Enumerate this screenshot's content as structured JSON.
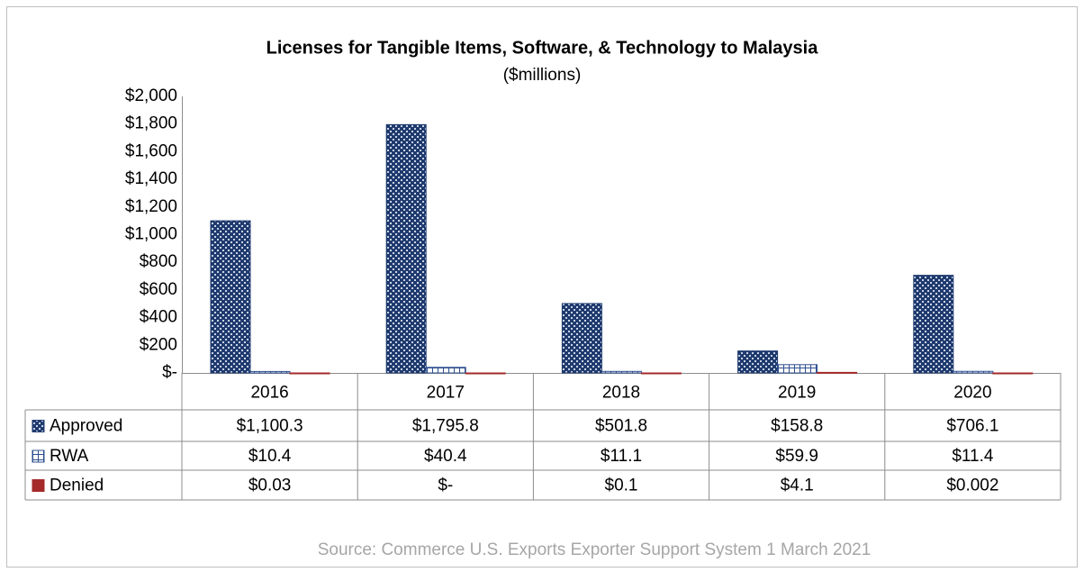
{
  "chart_data": {
    "type": "bar",
    "title": "Licenses for Tangible Items, Software, & Technology to Malaysia",
    "subtitle": "($millions)",
    "source": "Source: Commerce U.S. Exports Exporter Support System 1 March 2021",
    "categories": [
      "2016",
      "2017",
      "2018",
      "2019",
      "2020"
    ],
    "series": [
      {
        "name": "Approved",
        "color": "#1f3a6e",
        "values": [
          1100.3,
          1795.8,
          501.8,
          158.8,
          706.1
        ],
        "value_labels": [
          "$1,100.3",
          "$1,795.8",
          "$501.8",
          "$158.8",
          "$706.1"
        ]
      },
      {
        "name": "RWA",
        "color": "#2e4f8f",
        "values": [
          10.4,
          40.4,
          11.1,
          59.9,
          11.4
        ],
        "value_labels": [
          "$10.4",
          "$40.4",
          "$11.1",
          "$59.9",
          "$11.4"
        ]
      },
      {
        "name": "Denied",
        "color": "#a52a2a",
        "values": [
          0.03,
          0,
          0.1,
          4.1,
          0.002
        ],
        "value_labels": [
          "$0.03",
          "$-",
          "$0.1",
          "$4.1",
          "$0.002"
        ]
      }
    ],
    "ylim": [
      0,
      2000
    ],
    "yticks": [
      {
        "value": 0,
        "label": "$-"
      },
      {
        "value": 200,
        "label": "$200"
      },
      {
        "value": 400,
        "label": "$400"
      },
      {
        "value": 600,
        "label": "$600"
      },
      {
        "value": 800,
        "label": "$800"
      },
      {
        "value": 1000,
        "label": "$1,000"
      },
      {
        "value": 1200,
        "label": "$1,200"
      },
      {
        "value": 1400,
        "label": "$1,400"
      },
      {
        "value": 1600,
        "label": "$1,600"
      },
      {
        "value": 1800,
        "label": "$1,800"
      },
      {
        "value": 2000,
        "label": "$2,000"
      }
    ],
    "grid": false
  }
}
